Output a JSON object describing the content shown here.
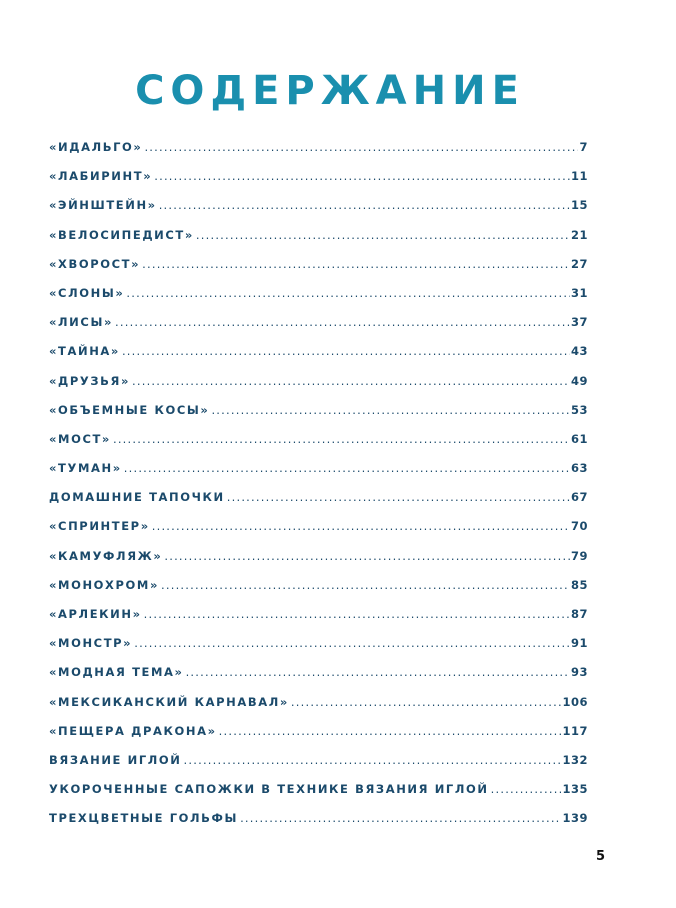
{
  "title": "СОДЕРЖАНИЕ",
  "entries": [
    {
      "label": "«ИДАЛЬГО»",
      "page": "7"
    },
    {
      "label": "«ЛАБИРИНТ»",
      "page": "11"
    },
    {
      "label": "«ЭЙНШТЕЙН»",
      "page": "15"
    },
    {
      "label": "«ВЕЛОСИПЕДИСТ»",
      "page": "21"
    },
    {
      "label": "«ХВОРОСТ»",
      "page": "27"
    },
    {
      "label": "«СЛОНЫ»",
      "page": "31"
    },
    {
      "label": "«ЛИСЫ»",
      "page": "37"
    },
    {
      "label": "«ТАЙНА»",
      "page": "43"
    },
    {
      "label": "«ДРУЗЬЯ»",
      "page": "49"
    },
    {
      "label": "«ОБЪЕМНЫЕ КОСЫ»",
      "page": "53"
    },
    {
      "label": "«МОСТ»",
      "page": "61"
    },
    {
      "label": "«ТУМАН»",
      "page": "63"
    },
    {
      "label": "ДОМАШНИЕ ТАПОЧКИ",
      "page": "67"
    },
    {
      "label": "«СПРИНТЕР»",
      "page": "70"
    },
    {
      "label": "«КАМУФЛЯЖ»",
      "page": "79"
    },
    {
      "label": "«МОНОХРОМ»",
      "page": "85"
    },
    {
      "label": "«АРЛЕКИН»",
      "page": "87"
    },
    {
      "label": "«МОНСТР»",
      "page": "91"
    },
    {
      "label": "«МОДНАЯ ТЕМА»",
      "page": "93"
    },
    {
      "label": "«МЕКСИКАНСКИЙ КАРНАВАЛ»",
      "page": "106"
    },
    {
      "label": "«ПЕЩЕРА ДРАКОНА»",
      "page": "117"
    },
    {
      "label": "ВЯЗАНИЕ ИГЛОЙ",
      "page": "132"
    },
    {
      "label": "УКОРОЧЕННЫЕ САПОЖКИ В ТЕХНИКЕ ВЯЗАНИЯ ИГЛОЙ",
      "page": "135"
    },
    {
      "label": "ТРЕХЦВЕТНЫЕ ГОЛЬФЫ",
      "page": "139"
    }
  ],
  "page_number": "5",
  "colors": {
    "title": "#1a8fae",
    "entries": "#1b4a6b"
  }
}
